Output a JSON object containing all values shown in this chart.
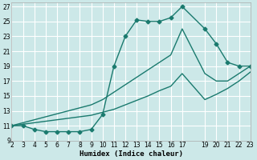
{
  "bg_color": "#cce8e8",
  "grid_color": "#ffffff",
  "line_color": "#1a7a6e",
  "marker": "D",
  "markersize": 2.5,
  "linewidth": 1.0,
  "xlabel": "Humidex (Indice chaleur)",
  "xlim": [
    2,
    23
  ],
  "ylim": [
    9,
    27.5
  ],
  "yticks": [
    9,
    11,
    13,
    15,
    17,
    19,
    21,
    23,
    25,
    27
  ],
  "xticks": [
    2,
    3,
    4,
    5,
    6,
    7,
    8,
    9,
    10,
    11,
    12,
    13,
    14,
    15,
    16,
    17,
    19,
    20,
    21,
    22,
    23
  ],
  "curve_main_x": [
    2,
    3,
    4,
    5,
    6,
    7,
    8,
    9,
    10,
    11,
    12,
    13,
    14,
    15,
    16,
    17,
    19,
    20,
    21,
    22,
    23
  ],
  "curve_main_y": [
    11,
    11,
    10.5,
    10.2,
    10.2,
    10.2,
    10.2,
    10.5,
    12.5,
    19,
    23,
    25.2,
    25,
    25,
    25.5,
    27,
    24,
    22,
    19.5,
    19,
    19
  ],
  "curve_upper_x": [
    2,
    3,
    4,
    5,
    6,
    7,
    8,
    9,
    10,
    11,
    12,
    13,
    14,
    15,
    16,
    17,
    19,
    20,
    21,
    22,
    23
  ],
  "curve_upper_y": [
    11,
    11.4,
    11.8,
    12.2,
    12.6,
    13.0,
    13.4,
    13.8,
    14.5,
    15.5,
    16.5,
    17.5,
    18.5,
    19.5,
    20.5,
    24,
    18,
    17,
    17,
    18,
    19
  ],
  "curve_lower_x": [
    2,
    3,
    4,
    5,
    6,
    7,
    8,
    9,
    10,
    11,
    12,
    13,
    14,
    15,
    16,
    17,
    19,
    20,
    21,
    22,
    23
  ],
  "curve_lower_y": [
    11,
    11.2,
    11.4,
    11.6,
    11.8,
    12.0,
    12.2,
    12.4,
    12.8,
    13.2,
    13.8,
    14.4,
    15.0,
    15.7,
    16.3,
    18,
    14.5,
    15.2,
    16.0,
    17.0,
    18.2
  ]
}
